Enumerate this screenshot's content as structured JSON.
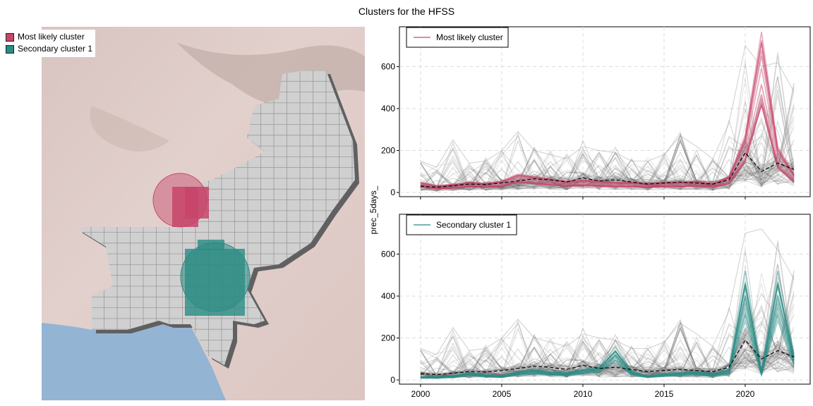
{
  "title": "Clusters for the HFSS",
  "map": {
    "legend": [
      {
        "label": "Most likely cluster",
        "color": "#c8456a"
      },
      {
        "label": "Secondary cluster 1",
        "color": "#2b8c84"
      }
    ]
  },
  "colors": {
    "most_likely": "#c8456a",
    "secondary": "#2b8c84",
    "background_series": "#555555",
    "mean_line": "#000000",
    "terrain": "#dcc8c4",
    "water": "#94b4d4",
    "country": "#d0d0d0"
  },
  "chart_data": [
    {
      "type": "line",
      "legend": "Most likely cluster",
      "legend_color": "#c8456a",
      "ylabel": "prec_5days_",
      "x_ticks": [
        2000,
        2005,
        2010,
        2015,
        2020
      ],
      "y_ticks": [
        0,
        200,
        400,
        600
      ],
      "xlim": [
        1998.7,
        2024.0
      ],
      "ylim": [
        -20,
        790
      ],
      "x": [
        2000,
        2001,
        2002,
        2003,
        2004,
        2005,
        2006,
        2007,
        2008,
        2009,
        2010,
        2011,
        2012,
        2013,
        2014,
        2015,
        2016,
        2017,
        2018,
        2019,
        2020,
        2021,
        2022,
        2023
      ],
      "mean_line": [
        30,
        25,
        32,
        40,
        38,
        45,
        55,
        65,
        60,
        50,
        70,
        55,
        60,
        50,
        40,
        45,
        50,
        45,
        40,
        60,
        190,
        100,
        140,
        110
      ],
      "cluster_series": [
        45,
        30,
        35,
        45,
        40,
        50,
        80,
        70,
        60,
        50,
        55,
        50,
        45,
        45,
        40,
        45,
        45,
        50,
        40,
        70,
        250,
        700,
        200,
        80
      ],
      "background_peak": [
        150,
        120,
        250,
        140,
        150,
        200,
        290,
        200,
        180,
        160,
        220,
        200,
        190,
        150,
        150,
        180,
        270,
        220,
        160,
        330,
        700,
        600,
        620,
        480
      ]
    },
    {
      "type": "line",
      "legend": "Secondary cluster 1",
      "legend_color": "#2b8c84",
      "ylabel": "prec_5days_",
      "x_ticks": [
        2000,
        2005,
        2010,
        2015,
        2020
      ],
      "y_ticks": [
        0,
        200,
        400,
        600
      ],
      "xlim": [
        1998.7,
        2024.0
      ],
      "ylim": [
        -20,
        790
      ],
      "x": [
        2000,
        2001,
        2002,
        2003,
        2004,
        2005,
        2006,
        2007,
        2008,
        2009,
        2010,
        2011,
        2012,
        2013,
        2014,
        2015,
        2016,
        2017,
        2018,
        2019,
        2020,
        2021,
        2022,
        2023
      ],
      "mean_line": [
        30,
        25,
        32,
        40,
        38,
        45,
        55,
        65,
        60,
        50,
        70,
        55,
        60,
        50,
        40,
        45,
        50,
        45,
        40,
        60,
        190,
        100,
        140,
        110
      ],
      "cluster_series": [
        15,
        15,
        20,
        35,
        25,
        20,
        40,
        50,
        40,
        35,
        50,
        60,
        150,
        40,
        20,
        30,
        35,
        40,
        30,
        50,
        500,
        40,
        500,
        120
      ],
      "background_peak": [
        150,
        120,
        250,
        140,
        150,
        200,
        290,
        200,
        180,
        160,
        220,
        200,
        190,
        150,
        150,
        180,
        270,
        220,
        160,
        330,
        700,
        720,
        620,
        480
      ]
    }
  ]
}
